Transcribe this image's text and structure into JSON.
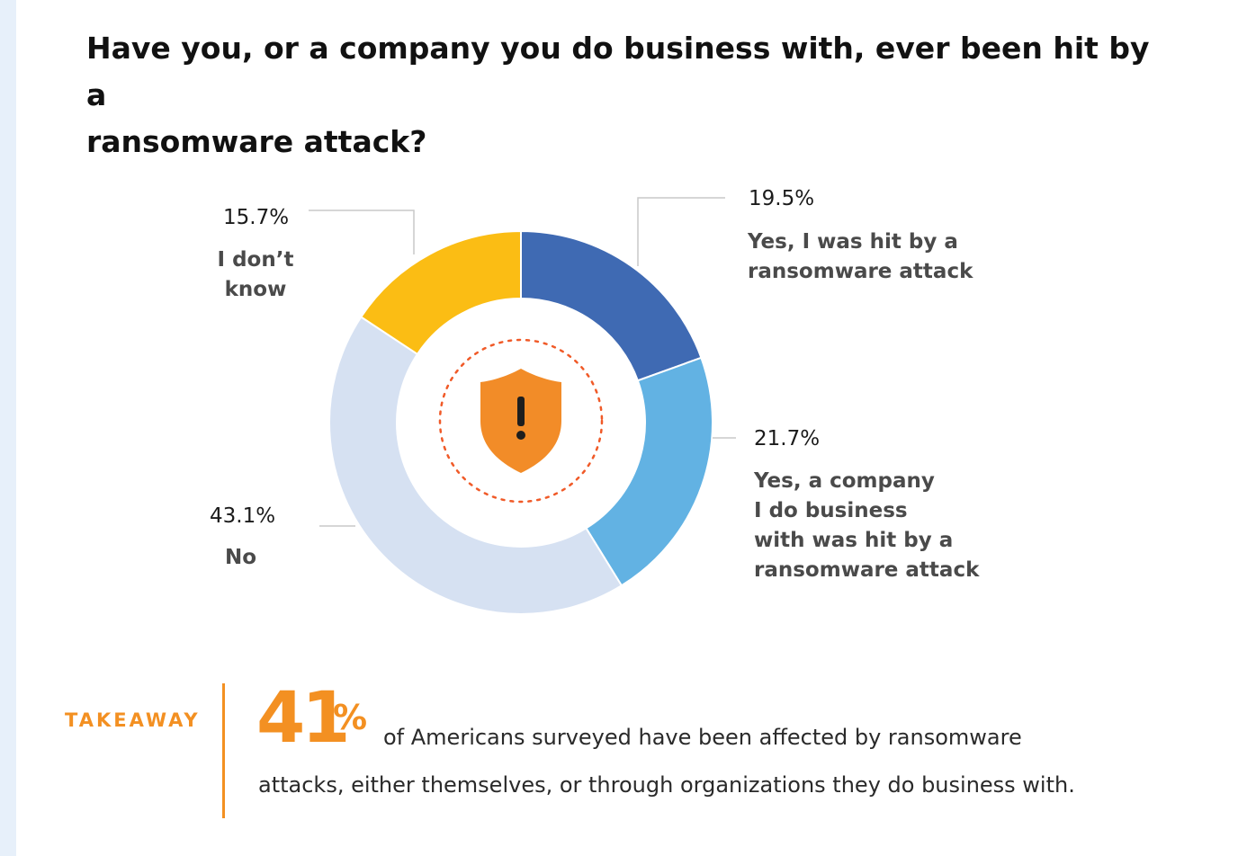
{
  "title": {
    "line1": "Have you, or a company you do business with, ever been hit by a",
    "line2": "ransomware attack?"
  },
  "chart_data": {
    "type": "pie",
    "donut": true,
    "title": "Have you, or a company you do business with, ever been hit by a ransomware attack?",
    "slices": [
      {
        "label": "Yes, I was hit by a ransomware attack",
        "value": 19.5,
        "display": "19.5%",
        "color": "#3f6ab3"
      },
      {
        "label": "Yes, a company I do business with was hit by a ransomware attack",
        "value": 21.7,
        "display": "21.7%",
        "color": "#62b2e3"
      },
      {
        "label": "No",
        "value": 43.1,
        "display": "43.1%",
        "color": "#d6e1f2"
      },
      {
        "label": "I don’t know",
        "value": 15.7,
        "display": "15.7%",
        "color": "#fbbd14"
      }
    ],
    "center_icon": "shield-exclamation-icon",
    "center_ring_color": "#f05a28",
    "shield_color": "#f28c28"
  },
  "labels": {
    "yes_me": {
      "pct": "19.5%",
      "lines": [
        "Yes, I was hit by a",
        "ransomware attack"
      ]
    },
    "yes_company": {
      "pct": "21.7%",
      "lines": [
        "Yes, a company",
        "I do business",
        "with was hit by a",
        "ransomware attack"
      ]
    },
    "no": {
      "pct": "43.1%",
      "lines": [
        "No"
      ]
    },
    "dont_know": {
      "pct": "15.7%",
      "lines": [
        "I don’t",
        "know"
      ]
    }
  },
  "takeaway": {
    "label": "TAKEAWAY",
    "number": "41",
    "percent_sign": "%",
    "line1": "of Americans surveyed  have been affected by ransomware",
    "line2": "attacks, either themselves, or through  organizations they do business with.",
    "accent_color": "#f39022"
  }
}
